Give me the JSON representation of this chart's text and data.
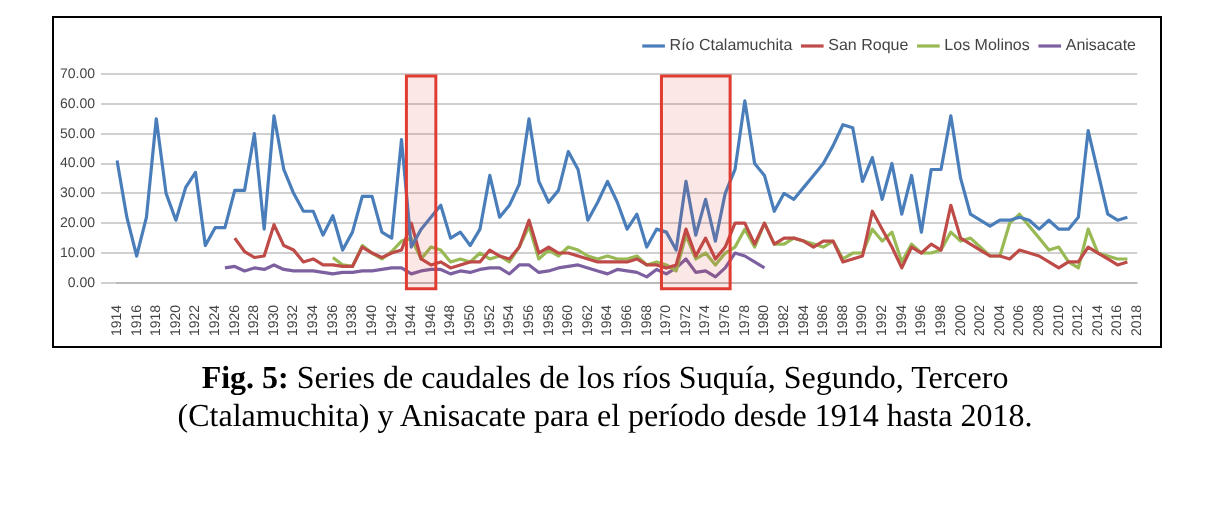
{
  "chart_data": {
    "type": "line",
    "categories": [
      "1914",
      null,
      "1916",
      null,
      "1918",
      null,
      "1920",
      null,
      "1922",
      null,
      "1924",
      null,
      "1926",
      null,
      "1928",
      null,
      "1930",
      null,
      "1932",
      null,
      "1934",
      null,
      "1936",
      null,
      "1938",
      null,
      "1940",
      null,
      "1942",
      null,
      "1944",
      null,
      "1946",
      null,
      "1948",
      null,
      "1950",
      null,
      "1952",
      null,
      "1954",
      null,
      "1956",
      null,
      "1958",
      null,
      "1960",
      null,
      "1962",
      null,
      "1964",
      null,
      "1966",
      null,
      "1968",
      null,
      "1970",
      null,
      "1972",
      null,
      "1974",
      null,
      "1976",
      null,
      "1978",
      null,
      "1980",
      null,
      "1982",
      null,
      "1984",
      null,
      "1986",
      null,
      "1988",
      null,
      "1990",
      null,
      "1992",
      null,
      "1994",
      null,
      "1996",
      null,
      "1998",
      null,
      "2000",
      null,
      "2002",
      null,
      "2004",
      null,
      "2006",
      null,
      "2008",
      null,
      "2010",
      null,
      "2012",
      null,
      "2014",
      null,
      "2016",
      null,
      "2018"
    ],
    "series": [
      {
        "name": "Río Ctalamuchita",
        "color": "#4a7ebb",
        "values": [
          41,
          22,
          9,
          22,
          55,
          30,
          21,
          32,
          37,
          12.5,
          18.5,
          18.5,
          31,
          31,
          50,
          18,
          56,
          38,
          30,
          24,
          24,
          16,
          22.5,
          11,
          17,
          29,
          29,
          17,
          15,
          48,
          12,
          18,
          22,
          26,
          15,
          17,
          12.5,
          18,
          36,
          22,
          26,
          33,
          55,
          34,
          27,
          31,
          44,
          38,
          21,
          27,
          34,
          27,
          18,
          23,
          12,
          18,
          17,
          11,
          34,
          16,
          28,
          14,
          30,
          38,
          61,
          40,
          36,
          24,
          30,
          28,
          32,
          36,
          40,
          46,
          53,
          52,
          34,
          42,
          28,
          40,
          23,
          36,
          17,
          38,
          38,
          56,
          35,
          23,
          21,
          19,
          21,
          21,
          22,
          21,
          18,
          21,
          18,
          18,
          22,
          51,
          37,
          23,
          21,
          22,
          null
        ]
      },
      {
        "name": "San Roque",
        "color": "#be4b48",
        "values": [
          null,
          null,
          null,
          null,
          null,
          null,
          null,
          null,
          null,
          null,
          null,
          null,
          15,
          10.5,
          8.5,
          9,
          19.5,
          12.5,
          11,
          7,
          8,
          6,
          6,
          5.5,
          5.5,
          12,
          10,
          8.5,
          10,
          11,
          20,
          8,
          6,
          7,
          5,
          6,
          7,
          7,
          11,
          9,
          8,
          12,
          21,
          10,
          12,
          10,
          10,
          9,
          8,
          7,
          7,
          7,
          7,
          8,
          6,
          6,
          5,
          6,
          18,
          9,
          15,
          8,
          12,
          20,
          20,
          13,
          20,
          13,
          15,
          15,
          14,
          12,
          14,
          14,
          7,
          8,
          9,
          24,
          18,
          12,
          5,
          12,
          10,
          13,
          11,
          26,
          15,
          13,
          11,
          9,
          9,
          8,
          11,
          10,
          9,
          7,
          5,
          7,
          7,
          12,
          10,
          8,
          6,
          7,
          null
        ]
      },
      {
        "name": "Los Molinos",
        "color": "#98b954",
        "values": [
          null,
          null,
          null,
          null,
          null,
          null,
          null,
          null,
          null,
          null,
          null,
          null,
          null,
          null,
          null,
          null,
          null,
          null,
          null,
          null,
          null,
          null,
          8.5,
          6,
          5.5,
          12.5,
          10,
          8,
          10.5,
          14,
          15,
          8,
          12,
          11,
          7,
          8,
          7,
          10,
          8,
          9,
          7,
          12,
          19,
          8,
          11,
          9,
          12,
          11,
          9,
          8,
          9,
          8,
          8,
          9,
          6,
          7,
          6,
          4,
          16,
          8,
          10,
          6,
          10,
          12,
          18,
          12,
          20,
          13,
          13,
          15,
          14,
          13,
          12,
          14,
          8,
          10,
          10,
          18,
          14,
          17,
          7,
          13,
          10,
          10,
          11,
          17,
          14,
          15,
          12,
          9,
          9,
          20,
          23,
          19,
          15,
          11,
          12,
          7,
          5,
          18,
          10,
          9,
          8,
          8,
          null
        ]
      },
      {
        "name": "Anisacate",
        "color": "#7d60a0",
        "values": [
          null,
          null,
          null,
          null,
          null,
          null,
          null,
          null,
          null,
          null,
          null,
          5,
          5.5,
          4,
          5,
          4.5,
          6,
          4.5,
          4,
          4,
          4,
          3.5,
          3,
          3.5,
          3.5,
          4,
          4,
          4.5,
          5,
          5,
          3,
          4,
          4.5,
          4.5,
          3,
          4,
          3.5,
          4.5,
          5,
          5,
          3,
          6,
          6,
          3.5,
          4,
          5,
          5.5,
          6,
          5,
          4,
          3,
          4.5,
          4,
          3.5,
          2,
          4.5,
          3,
          5,
          8,
          3.5,
          4,
          2,
          5,
          10,
          9,
          7,
          5,
          null,
          null,
          null,
          null,
          null,
          null,
          null,
          null,
          null,
          null,
          null,
          null,
          null,
          null,
          null,
          null,
          null,
          null,
          null,
          null,
          null,
          null,
          null,
          null,
          null,
          null,
          null,
          null,
          null,
          null,
          null,
          null,
          null,
          null,
          null,
          null,
          null,
          null
        ]
      }
    ],
    "ylim": [
      0,
      70
    ],
    "yticks": [
      {
        "value": 0,
        "label": "0.00"
      },
      {
        "value": 10,
        "label": "10.00"
      },
      {
        "value": 20,
        "label": "20.00"
      },
      {
        "value": 30,
        "label": "30.00"
      },
      {
        "value": 40,
        "label": "40.00"
      },
      {
        "value": 50,
        "label": "50.00"
      },
      {
        "value": 60,
        "label": "60.00"
      },
      {
        "value": 70,
        "label": "70.00"
      }
    ],
    "grid": "y",
    "legend": "top right",
    "marker": "none",
    "line_style": "solid",
    "bands": [
      {
        "axis": "x",
        "from": "1944",
        "to": "1946",
        "color": "#e03c31"
      },
      {
        "axis": "x",
        "from": "1970",
        "to": "1976",
        "color": "#e03c31"
      }
    ],
    "annotations": [
      "Fig. 5: Series de caudales de los ríos Suquía, Segundo, Tercero (Ctalamuchita) y Anisacate para el período desde 1914 hasta 2018."
    ]
  }
}
